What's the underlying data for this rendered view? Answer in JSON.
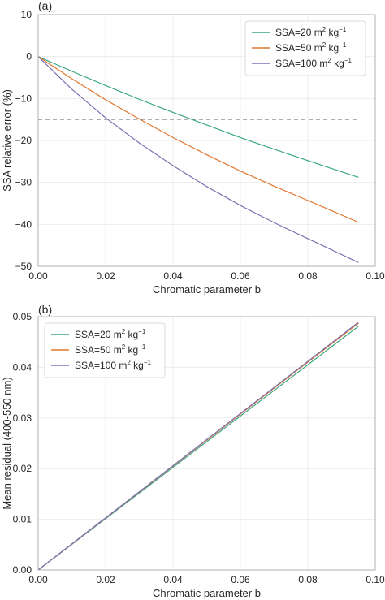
{
  "chart_data": [
    {
      "type": "line",
      "panel_label": "(a)",
      "xlabel": "Chromatic parameter b",
      "ylabel": "SSA relative error (%)",
      "xlim": [
        0.0,
        0.1
      ],
      "ylim": [
        -50,
        10
      ],
      "x_ticks": [
        "0.00",
        "0.02",
        "0.04",
        "0.06",
        "0.08",
        "0.10"
      ],
      "y_ticks": [
        "10",
        "0",
        "−10",
        "−20",
        "−30",
        "−40",
        "−50"
      ],
      "grid": true,
      "legend_position": "top-right",
      "reference_line": {
        "y": -15,
        "style": "dashed",
        "color": "#808080"
      },
      "series": [
        {
          "name_main": "SSA=20 m",
          "name_sup1": "2",
          "name_mid": " kg",
          "name_sup2": "−1",
          "color": "#3aa683",
          "x": [
            0,
            0.01,
            0.02,
            0.03,
            0.04,
            0.05,
            0.06,
            0.07,
            0.08,
            0.095
          ],
          "y": [
            0,
            -3.5,
            -6.9,
            -10.2,
            -13.3,
            -16.3,
            -19.3,
            -22.1,
            -24.8,
            -28.8
          ]
        },
        {
          "name_main": "SSA=50 m",
          "name_sup1": "2",
          "name_mid": " kg",
          "name_sup2": "−1",
          "color": "#e0762e",
          "x": [
            0,
            0.01,
            0.02,
            0.03,
            0.04,
            0.05,
            0.06,
            0.07,
            0.08,
            0.095
          ],
          "y": [
            0,
            -5.3,
            -10.3,
            -14.9,
            -19.3,
            -23.4,
            -27.3,
            -30.9,
            -34.3,
            -39.5
          ]
        },
        {
          "name_main": "SSA=100 m",
          "name_sup1": "2",
          "name_mid": " kg",
          "name_sup2": "−1",
          "color": "#7b72b3",
          "x": [
            0,
            0.01,
            0.02,
            0.03,
            0.04,
            0.05,
            0.06,
            0.07,
            0.08,
            0.095
          ],
          "y": [
            0,
            -7.8,
            -14.6,
            -20.6,
            -26.0,
            -31.0,
            -35.5,
            -39.6,
            -43.4,
            -49.1
          ]
        }
      ]
    },
    {
      "type": "line",
      "panel_label": "(b)",
      "xlabel": "Chromatic parameter b",
      "ylabel": "Mean residual (400-550 nm)",
      "xlim": [
        0.0,
        0.1
      ],
      "ylim": [
        0.0,
        0.05
      ],
      "x_ticks": [
        "0.00",
        "0.02",
        "0.04",
        "0.06",
        "0.08",
        "0.10"
      ],
      "y_ticks": [
        "0.05",
        "0.04",
        "0.03",
        "0.02",
        "0.01",
        "0.00"
      ],
      "grid": true,
      "legend_position": "top-left",
      "series": [
        {
          "name_main": "SSA=20 m",
          "name_sup1": "2",
          "name_mid": " kg",
          "name_sup2": "−1",
          "color": "#3aa683",
          "x": [
            0,
            0.095
          ],
          "y": [
            0,
            0.0481
          ]
        },
        {
          "name_main": "SSA=50 m",
          "name_sup1": "2",
          "name_mid": " kg",
          "name_sup2": "−1",
          "color": "#e0762e",
          "x": [
            0,
            0.095
          ],
          "y": [
            0,
            0.0487
          ]
        },
        {
          "name_main": "SSA=100 m",
          "name_sup1": "2",
          "name_mid": " kg",
          "name_sup2": "−1",
          "color": "#7b72b3",
          "x": [
            0,
            0.095
          ],
          "y": [
            0,
            0.0489
          ]
        }
      ]
    }
  ]
}
